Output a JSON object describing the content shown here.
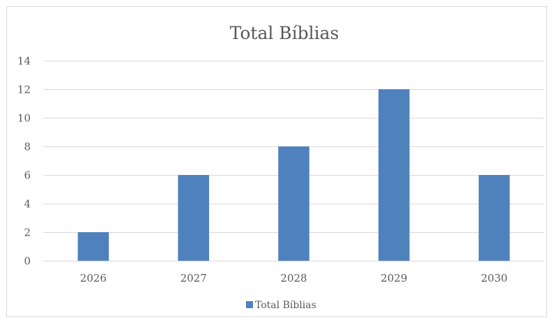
{
  "chart_data": {
    "type": "bar",
    "title": "Total Bíblias",
    "categories": [
      "2026",
      "2027",
      "2028",
      "2029",
      "2030"
    ],
    "series": [
      {
        "name": "Total Bíblias",
        "values": [
          2,
          6,
          8,
          12,
          6
        ],
        "color": "#4f81bd"
      }
    ],
    "xlabel": "",
    "ylabel": "",
    "ylim": [
      0,
      14
    ],
    "yticks": [
      0,
      2,
      4,
      6,
      8,
      10,
      12,
      14
    ],
    "grid": true,
    "legend_position": "bottom"
  }
}
